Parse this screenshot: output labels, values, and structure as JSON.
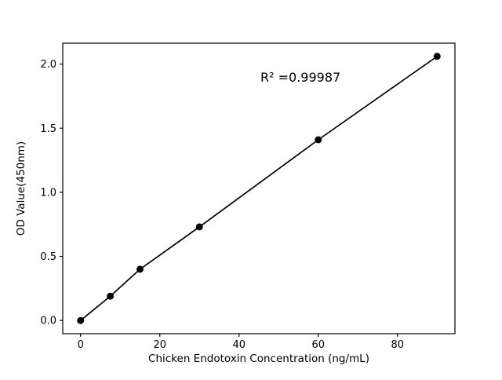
{
  "chart_data": {
    "type": "scatter",
    "title": "",
    "xlabel": "Chicken Endotoxin Concentration (ng/mL)",
    "ylabel": "OD Value(450nm)",
    "annotation": "R² =0.99987",
    "x": [
      0,
      7.5,
      15,
      30,
      60,
      90
    ],
    "y": [
      0.0,
      0.19,
      0.4,
      0.73,
      1.41,
      2.06
    ],
    "xlim": [
      -4.5,
      94.5
    ],
    "ylim": [
      -0.103,
      2.163
    ],
    "xticks": [
      0,
      20,
      40,
      60,
      80
    ],
    "xticklabels": [
      "0",
      "20",
      "40",
      "60",
      "80"
    ],
    "yticks": [
      0.0,
      0.5,
      1.0,
      1.5,
      2.0
    ],
    "yticklabels": [
      "0.0",
      "0.5",
      "1.0",
      "1.5",
      "2.0"
    ],
    "grid": false,
    "legend": null,
    "line_color": "#000000",
    "marker_color": "#000000",
    "frame_color": "#000000",
    "background_color": "#ffffff"
  }
}
